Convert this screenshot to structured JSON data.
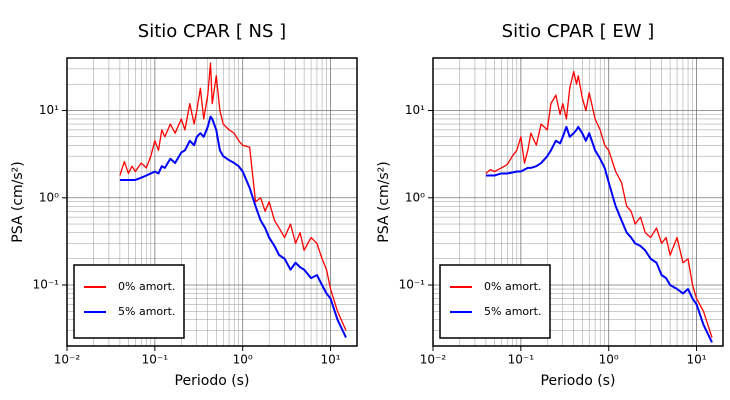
{
  "chart_data": [
    {
      "type": "line",
      "title": "Sitio CPAR [ NS ]",
      "x_label": "Periodo (s)",
      "y_label": "PSA (cm/s²)",
      "x_log": true,
      "y_log": true,
      "grid": true,
      "legend": "lower left",
      "xlim": [
        0.01,
        20
      ],
      "ylim": [
        0.02,
        40
      ],
      "xticks": [
        {
          "value": 0.01,
          "label": "10⁻²"
        },
        {
          "value": 0.1,
          "label": "10⁻¹"
        },
        {
          "value": 1,
          "label": "10⁰"
        },
        {
          "value": 10,
          "label": "10¹"
        }
      ],
      "yticks": [
        {
          "value": 0.1,
          "label": "10⁻¹"
        },
        {
          "value": 1,
          "label": "10⁰"
        },
        {
          "value": 10,
          "label": "10¹"
        }
      ],
      "x": [
        0.04,
        0.045,
        0.05,
        0.055,
        0.06,
        0.07,
        0.08,
        0.09,
        0.1,
        0.11,
        0.12,
        0.13,
        0.15,
        0.17,
        0.2,
        0.22,
        0.25,
        0.28,
        0.3,
        0.33,
        0.36,
        0.4,
        0.43,
        0.45,
        0.5,
        0.55,
        0.6,
        0.7,
        0.8,
        0.9,
        1.0,
        1.2,
        1.4,
        1.6,
        1.8,
        2,
        2.3,
        2.6,
        3,
        3.5,
        4,
        4.5,
        5,
        6,
        7,
        8,
        9,
        10,
        12,
        15
      ],
      "series": [
        {
          "name": "0% amort.",
          "color": "#ff0000",
          "values": [
            1.8,
            2.6,
            1.9,
            2.3,
            2.0,
            2.5,
            2.2,
            3.0,
            4.5,
            3.5,
            6,
            5,
            7,
            5.5,
            8,
            6,
            12,
            7,
            10,
            18,
            8,
            15,
            35,
            12,
            25,
            10,
            7,
            6,
            5.5,
            4.5,
            4,
            3.8,
            0.9,
            1.0,
            0.7,
            0.9,
            0.55,
            0.45,
            0.35,
            0.5,
            0.3,
            0.4,
            0.25,
            0.35,
            0.3,
            0.2,
            0.15,
            0.09,
            0.05,
            0.03
          ]
        },
        {
          "name": "5% amort.",
          "color": "#0000ff",
          "values": [
            1.6,
            1.6,
            1.6,
            1.6,
            1.6,
            1.7,
            1.8,
            1.9,
            2.0,
            1.9,
            2.3,
            2.2,
            2.8,
            2.5,
            3.3,
            3.5,
            4.5,
            4,
            5,
            5.5,
            5,
            6.5,
            8.5,
            8,
            6,
            3.5,
            3,
            2.7,
            2.5,
            2.3,
            2.0,
            1.3,
            0.8,
            0.55,
            0.45,
            0.35,
            0.28,
            0.22,
            0.2,
            0.15,
            0.18,
            0.16,
            0.15,
            0.12,
            0.13,
            0.1,
            0.08,
            0.07,
            0.04,
            0.025
          ]
        }
      ]
    },
    {
      "type": "line",
      "title": "Sitio CPAR [ EW ]",
      "x_label": "Periodo (s)",
      "y_label": "PSA (cm/s²)",
      "x_log": true,
      "y_log": true,
      "grid": true,
      "legend": "lower left",
      "xlim": [
        0.01,
        20
      ],
      "ylim": [
        0.02,
        40
      ],
      "xticks": [
        {
          "value": 0.01,
          "label": "10⁻²"
        },
        {
          "value": 0.1,
          "label": "10⁻¹"
        },
        {
          "value": 1,
          "label": "10⁰"
        },
        {
          "value": 10,
          "label": "10¹"
        }
      ],
      "yticks": [
        {
          "value": 0.1,
          "label": "10⁻¹"
        },
        {
          "value": 1,
          "label": "10⁰"
        },
        {
          "value": 10,
          "label": "10¹"
        }
      ],
      "x": [
        0.04,
        0.045,
        0.05,
        0.055,
        0.06,
        0.07,
        0.08,
        0.09,
        0.1,
        0.11,
        0.12,
        0.13,
        0.15,
        0.17,
        0.2,
        0.22,
        0.25,
        0.28,
        0.3,
        0.33,
        0.36,
        0.4,
        0.43,
        0.45,
        0.5,
        0.55,
        0.6,
        0.7,
        0.8,
        0.9,
        1.0,
        1.2,
        1.4,
        1.6,
        1.8,
        2,
        2.3,
        2.6,
        3,
        3.5,
        4,
        4.5,
        5,
        6,
        7,
        8,
        9,
        10,
        12,
        15
      ],
      "series": [
        {
          "name": "0% amort.",
          "color": "#ff0000",
          "values": [
            1.9,
            2.1,
            2.0,
            2.1,
            2.2,
            2.4,
            3.0,
            3.5,
            5,
            2.5,
            3.5,
            5.5,
            4,
            7,
            6,
            12,
            15,
            9,
            12,
            8,
            18,
            28,
            20,
            25,
            14,
            10,
            16,
            8,
            6,
            4,
            3.5,
            2.0,
            1.5,
            0.8,
            0.7,
            0.5,
            0.6,
            0.4,
            0.35,
            0.45,
            0.3,
            0.35,
            0.22,
            0.35,
            0.18,
            0.2,
            0.1,
            0.07,
            0.05,
            0.025
          ]
        },
        {
          "name": "5% amort.",
          "color": "#0000ff",
          "values": [
            1.8,
            1.8,
            1.8,
            1.85,
            1.9,
            1.9,
            1.95,
            2.0,
            2.0,
            2.1,
            2.2,
            2.2,
            2.3,
            2.5,
            3,
            3.5,
            4.5,
            4.2,
            5,
            6.5,
            5,
            5.5,
            6,
            6.5,
            5.5,
            4.5,
            5.5,
            3.5,
            2.8,
            2.2,
            1.5,
            0.8,
            0.55,
            0.4,
            0.35,
            0.3,
            0.28,
            0.25,
            0.2,
            0.18,
            0.13,
            0.12,
            0.1,
            0.09,
            0.08,
            0.09,
            0.07,
            0.06,
            0.035,
            0.022
          ]
        }
      ]
    }
  ]
}
